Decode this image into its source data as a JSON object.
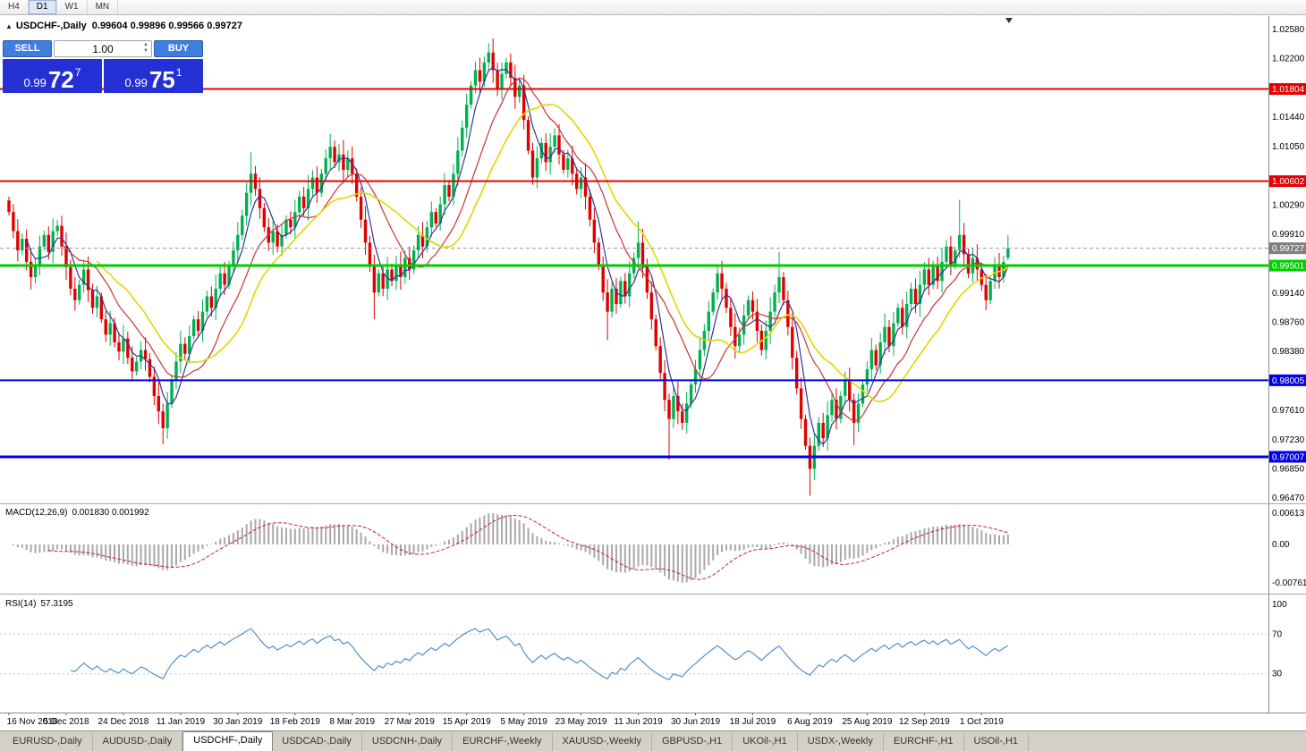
{
  "toolbar": {
    "timeframes": [
      {
        "label": "H4",
        "active": false
      },
      {
        "label": "D1",
        "active": true
      },
      {
        "label": "W1",
        "active": false
      },
      {
        "label": "MN",
        "active": false
      }
    ]
  },
  "chart_header": {
    "collapse_icon": "▲",
    "symbol": "USDCHF-,Daily",
    "ohlc": "0.99604 0.99896 0.99566 0.99727"
  },
  "one_click": {
    "sell_label": "SELL",
    "buy_label": "BUY",
    "volume": "1.00",
    "sell_price_main": "0.99",
    "sell_price_pips": "72",
    "sell_price_point": "7",
    "buy_price_main": "0.99",
    "buy_price_pips": "75",
    "buy_price_point": "1"
  },
  "tabs": [
    {
      "label": "EURUSD-,Daily",
      "active": false
    },
    {
      "label": "AUDUSD-,Daily",
      "active": false
    },
    {
      "label": "USDCHF-,Daily",
      "active": true
    },
    {
      "label": "USDCAD-,Daily",
      "active": false
    },
    {
      "label": "USDCNH-,Daily",
      "active": false
    },
    {
      "label": "EURCHF-,Weekly",
      "active": false
    },
    {
      "label": "XAUUSD-,Weekly",
      "active": false
    },
    {
      "label": "GBPUSD-,H1",
      "active": false
    },
    {
      "label": "UKOil-,H1",
      "active": false
    },
    {
      "label": "USDX-,Weekly",
      "active": false
    },
    {
      "label": "EURCHF-,H1",
      "active": false
    },
    {
      "label": "USOil-,H1",
      "active": false
    }
  ],
  "chart_data": {
    "type": "candlestick",
    "symbol": "USDCHF-",
    "timeframe": "Daily",
    "last_candle": {
      "open": 0.99604,
      "high": 0.99896,
      "low": 0.99566,
      "close": 0.99727
    },
    "first_open": 1.0035,
    "closes": [
      1.002,
      0.9995,
      0.997,
      0.9985,
      0.9955,
      0.9935,
      0.995,
      0.9975,
      0.999,
      0.9968,
      0.9995,
      1.0002,
      0.9975,
      0.9948,
      0.992,
      0.9905,
      0.9925,
      0.9945,
      0.9918,
      0.9895,
      0.991,
      0.988,
      0.986,
      0.9875,
      0.985,
      0.9838,
      0.9855,
      0.983,
      0.9812,
      0.9825,
      0.984,
      0.9828,
      0.9805,
      0.978,
      0.976,
      0.9738,
      0.977,
      0.98,
      0.9825,
      0.9848,
      0.9835,
      0.9858,
      0.988,
      0.9865,
      0.989,
      0.991,
      0.9895,
      0.992,
      0.994,
      0.9925,
      0.995,
      0.997,
      0.999,
      1.0015,
      1.0045,
      1.007,
      1.005,
      1.0025,
      1.0,
      0.998,
      0.9995,
      0.9975,
      0.999,
      1.001,
      1.0,
      1.002,
      1.004,
      1.0025,
      1.005,
      1.0065,
      1.0045,
      1.007,
      1.009,
      1.0105,
      1.0085,
      1.0095,
      1.0075,
      1.009,
      1.007,
      1.004,
      1.001,
      0.998,
      0.995,
      0.9915,
      0.994,
      0.992,
      0.9945,
      0.993,
      0.995,
      0.9935,
      0.996,
      0.9945,
      0.997,
      0.999,
      0.9975,
      1.0,
      1.002,
      1.0005,
      1.003,
      1.0055,
      1.004,
      1.007,
      1.01,
      1.013,
      1.016,
      1.0185,
      1.0205,
      1.019,
      1.0215,
      1.0228,
      1.0205,
      1.018,
      1.02,
      1.0215,
      1.0195,
      1.017,
      1.0185,
      1.014,
      1.01,
      1.0065,
      1.009,
      1.011,
      1.0085,
      1.0105,
      1.012,
      1.0095,
      1.0075,
      1.009,
      1.007,
      1.005,
      1.0065,
      1.004,
      1.001,
      0.998,
      0.995,
      0.9915,
      0.989,
      0.992,
      0.99,
      0.993,
      0.991,
      0.994,
      0.996,
      0.998,
      0.995,
      0.9915,
      0.988,
      0.9845,
      0.981,
      0.9775,
      0.975,
      0.978,
      0.976,
      0.9745,
      0.977,
      0.9795,
      0.9815,
      0.984,
      0.9865,
      0.989,
      0.9915,
      0.994,
      0.992,
      0.9895,
      0.987,
      0.9845,
      0.986,
      0.9885,
      0.9905,
      0.989,
      0.9865,
      0.984,
      0.9865,
      0.989,
      0.9915,
      0.9935,
      0.9905,
      0.987,
      0.983,
      0.979,
      0.975,
      0.9715,
      0.9685,
      0.9715,
      0.9745,
      0.9725,
      0.9755,
      0.9775,
      0.975,
      0.978,
      0.98,
      0.9775,
      0.9745,
      0.977,
      0.9795,
      0.9815,
      0.984,
      0.982,
      0.985,
      0.987,
      0.9845,
      0.9875,
      0.9895,
      0.987,
      0.99,
      0.992,
      0.99,
      0.9925,
      0.9945,
      0.9925,
      0.995,
      0.993,
      0.9955,
      0.9975,
      0.995,
      0.997,
      0.999,
      0.9965,
      0.994,
      0.996,
      0.9945,
      0.9925,
      0.9905,
      0.993,
      0.995,
      0.9935,
      0.9955,
      0.99727
    ],
    "wick_overrides": {
      "35": {
        "low": 0.9717
      },
      "55": {
        "high": 1.0098
      },
      "73": {
        "high": 1.0122
      },
      "83": {
        "low": 0.988
      },
      "109": {
        "high": 1.024
      },
      "136": {
        "low": 0.9853
      },
      "143": {
        "high": 1.0008
      },
      "150": {
        "low": 0.9697
      },
      "175": {
        "high": 0.9968
      },
      "182": {
        "low": 0.965
      },
      "192": {
        "low": 0.9716
      },
      "216": {
        "high": 1.0036
      }
    },
    "colors": {
      "up": "#00b050",
      "down": "#e00000",
      "macd_hist": "#a8a8a8",
      "macd_signal": "#cc2222",
      "rsi_line": "#4189c8"
    },
    "moving_averages": [
      {
        "period": 5,
        "color": "#333399"
      },
      {
        "period": 13,
        "color": "#cc3333"
      },
      {
        "period": 21,
        "color": "#e2d600"
      }
    ],
    "y_axis": {
      "min": 0.9647,
      "max": 1.0258,
      "labels": [
        {
          "text": "1.02580",
          "value": 1.0258
        },
        {
          "text": "1.02200",
          "value": 1.022
        },
        {
          "text": "1.01440",
          "value": 1.0144
        },
        {
          "text": "1.01050",
          "value": 1.0105
        },
        {
          "text": "1.00290",
          "value": 1.0029
        },
        {
          "text": "0.99910",
          "value": 0.9991
        },
        {
          "text": "0.99140",
          "value": 0.9914
        },
        {
          "text": "0.98760",
          "value": 0.9876
        },
        {
          "text": "0.98380",
          "value": 0.9838
        },
        {
          "text": "0.97610",
          "value": 0.9761
        },
        {
          "text": "0.97230",
          "value": 0.9723
        },
        {
          "text": "0.96850",
          "value": 0.9685
        },
        {
          "text": "0.96470",
          "value": 0.9647
        }
      ]
    },
    "levels": [
      {
        "text": "1.01804",
        "value": 1.01804,
        "color": "#e60000",
        "width": 2
      },
      {
        "text": "1.00602",
        "value": 1.00602,
        "color": "#e60000",
        "width": 2
      },
      {
        "text": "0.99501",
        "value": 0.99501,
        "color": "#00ce00",
        "width": 3
      },
      {
        "text": "0.98005",
        "value": 0.98005,
        "color": "#0000e6",
        "width": 2
      },
      {
        "text": "0.97007",
        "value": 0.97007,
        "color": "#0000e6",
        "width": 3
      }
    ],
    "current_price": {
      "text": "0.99727",
      "value": 0.99727,
      "bg": "#808080"
    },
    "x_axis": {
      "dates": [
        "16 Nov 2018",
        "5 Dec 2018",
        "24 Dec 2018",
        "11 Jan 2019",
        "30 Jan 2019",
        "18 Feb 2019",
        "8 Mar 2019",
        "27 Mar 2019",
        "15 Apr 2019",
        "5 May 2019",
        "23 May 2019",
        "11 Jun 2019",
        "30 Jun 2019",
        "18 Jul 2019",
        "6 Aug 2019",
        "25 Aug 2019",
        "12 Sep 2019",
        "1 Oct 2019"
      ],
      "indices": [
        0,
        13,
        26,
        39,
        52,
        65,
        78,
        91,
        104,
        117,
        130,
        143,
        156,
        169,
        182,
        195,
        208,
        221
      ]
    },
    "macd": {
      "label": "MACD(12,26,9)",
      "values_text": "0.001830 0.001992",
      "fast": 12,
      "slow": 26,
      "signal": 9,
      "axis_labels": [
        {
          "text": "0.00613",
          "value": 0.00613
        },
        {
          "text": "0.00",
          "value": 0
        },
        {
          "text": "-0.00761",
          "value": -0.00761
        }
      ]
    },
    "rsi": {
      "label": "RSI(14)",
      "value_text": "57.3195",
      "period": 14,
      "axis_labels": [
        {
          "text": "100",
          "value": 100
        },
        {
          "text": "70",
          "value": 70
        },
        {
          "text": "30",
          "value": 30
        }
      ],
      "guide_levels": [
        70,
        30
      ]
    }
  }
}
